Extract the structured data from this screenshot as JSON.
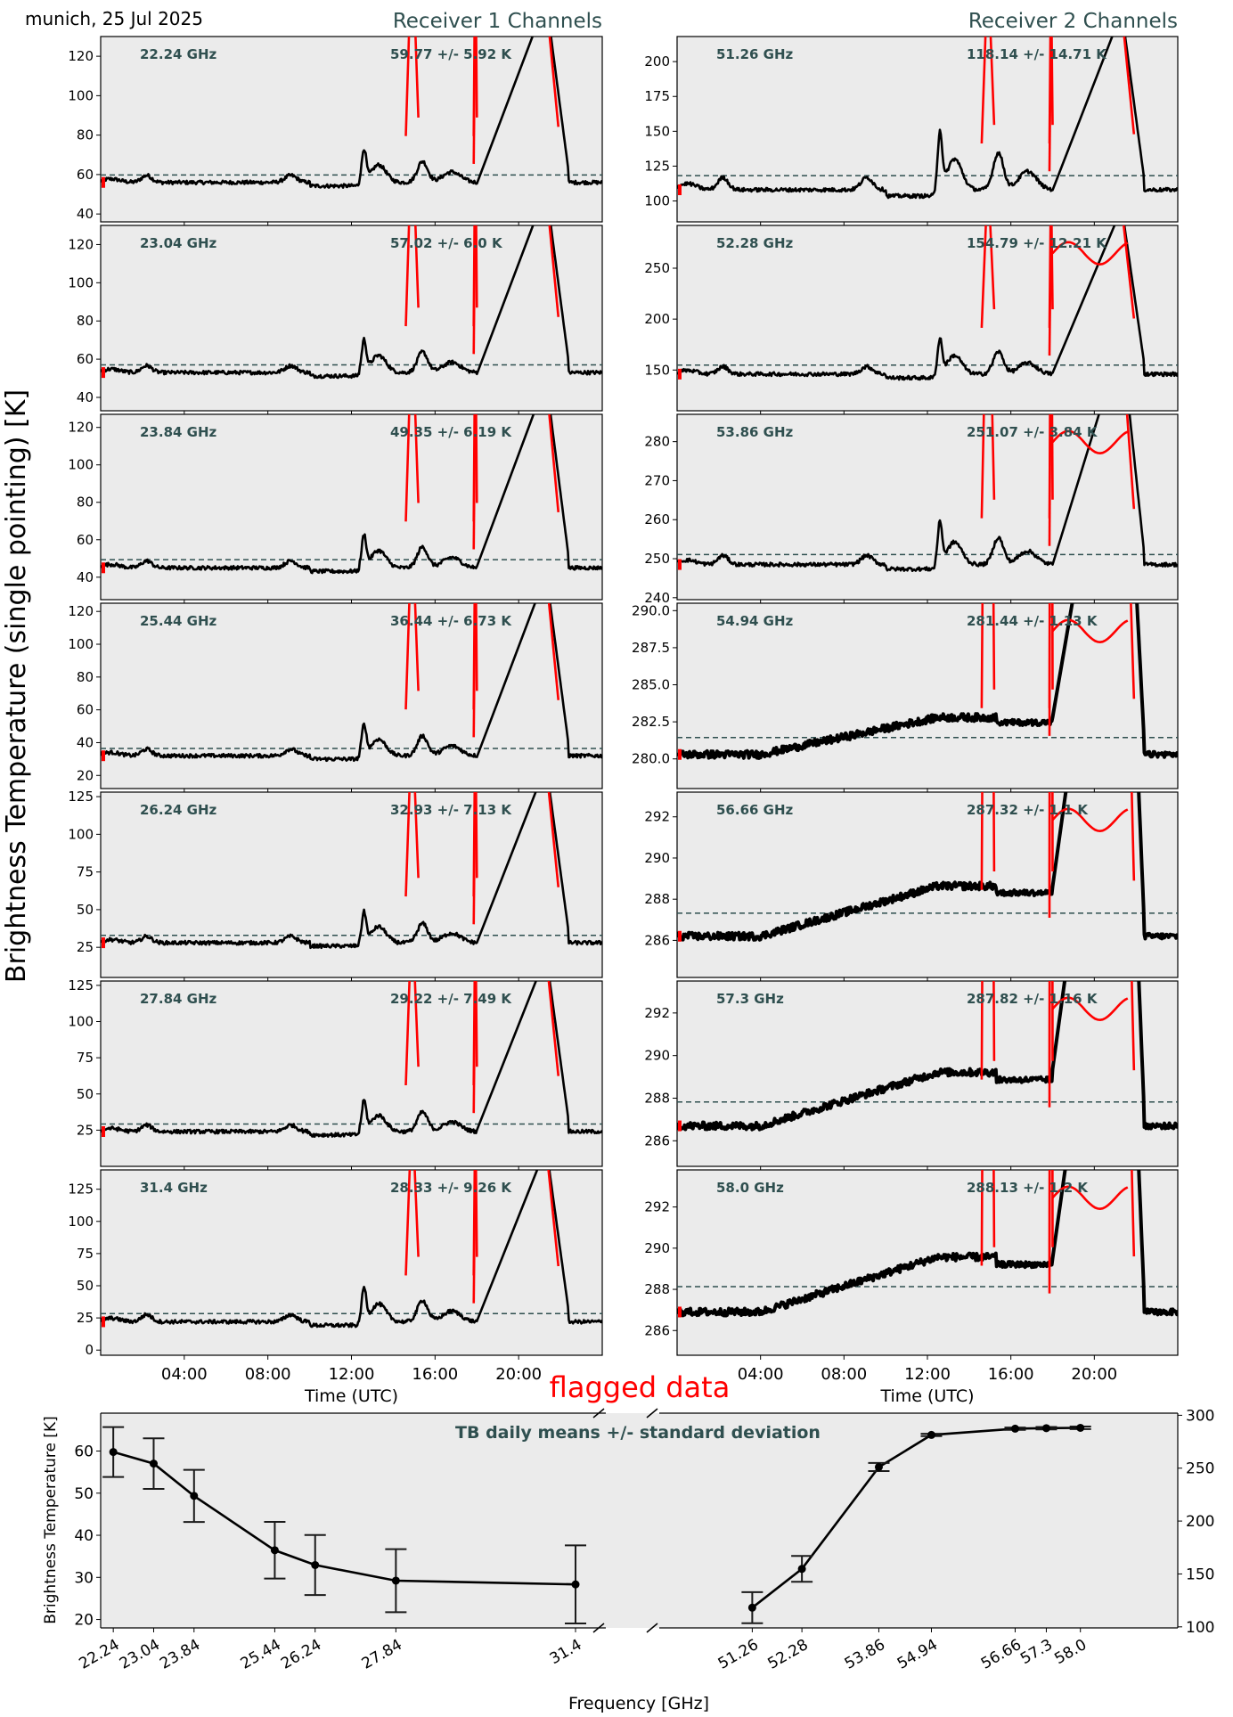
{
  "header": {
    "site_date": "munich, 25 Jul 2025",
    "receiver1_title": "Receiver 1 Channels",
    "receiver2_title": "Receiver 2 Channels",
    "global_ylabel": "Brightness Temperature (single pointing) [K]",
    "flag_legend": "flagged data"
  },
  "colors": {
    "axes_bg": "#ebebeb",
    "line": "#000000",
    "flag": "#ff0000",
    "mean_line": "#2f4f4f",
    "label_text": "#2f4f4f"
  },
  "chart_data": [
    {
      "type": "line",
      "title": "Receiver 1 Channels",
      "xlabel": "Time (UTC)",
      "xticks": [
        "04:00",
        "08:00",
        "12:00",
        "16:00",
        "20:00"
      ],
      "xlim_hours": [
        0,
        24
      ],
      "panels": [
        {
          "freq_label": "22.24 GHz",
          "stat_label": "59.77 +/- 5.92 K",
          "mean": 59.77,
          "std": 5.92,
          "ylim": [
            36,
            130
          ],
          "yticks": [
            40,
            60,
            80,
            100,
            120
          ],
          "base": 56
        },
        {
          "freq_label": "23.04 GHz",
          "stat_label": "57.02 +/- 6.0 K",
          "mean": 57.02,
          "std": 6.0,
          "ylim": [
            33,
            130
          ],
          "yticks": [
            40,
            60,
            80,
            100,
            120
          ],
          "base": 53
        },
        {
          "freq_label": "23.84 GHz",
          "stat_label": "49.35 +/- 6.19 K",
          "mean": 49.35,
          "std": 6.19,
          "ylim": [
            28,
            127
          ],
          "yticks": [
            40,
            60,
            80,
            100,
            120
          ],
          "base": 45
        },
        {
          "freq_label": "25.44 GHz",
          "stat_label": "36.44 +/- 6.73 K",
          "mean": 36.44,
          "std": 6.73,
          "ylim": [
            12,
            125
          ],
          "yticks": [
            20,
            40,
            60,
            80,
            100,
            120
          ],
          "base": 32
        },
        {
          "freq_label": "26.24 GHz",
          "stat_label": "32.93 +/- 7.13 K",
          "mean": 32.93,
          "std": 7.13,
          "ylim": [
            5,
            128
          ],
          "yticks": [
            25,
            50,
            75,
            100,
            125
          ],
          "base": 28
        },
        {
          "freq_label": "27.84 GHz",
          "stat_label": "29.22 +/- 7.49 K",
          "mean": 29.22,
          "std": 7.49,
          "ylim": [
            0,
            128
          ],
          "yticks": [
            25,
            50,
            75,
            100,
            125
          ],
          "base": 24
        },
        {
          "freq_label": "31.4 GHz",
          "stat_label": "28.33 +/- 9.26 K",
          "mean": 28.33,
          "std": 9.26,
          "ylim": [
            -4,
            140
          ],
          "yticks": [
            0,
            25,
            50,
            75,
            100,
            125
          ],
          "base": 22
        }
      ]
    },
    {
      "type": "line",
      "title": "Receiver 2 Channels",
      "xlabel": "Time (UTC)",
      "xticks": [
        "04:00",
        "08:00",
        "12:00",
        "16:00",
        "20:00"
      ],
      "xlim_hours": [
        0,
        24
      ],
      "panels": [
        {
          "freq_label": "51.26 GHz",
          "stat_label": "118.14 +/- 14.71 K",
          "mean": 118.14,
          "std": 14.71,
          "ylim": [
            85,
            218
          ],
          "yticks": [
            100,
            125,
            150,
            175,
            200
          ],
          "base": 108
        },
        {
          "freq_label": "52.28 GHz",
          "stat_label": "154.79 +/- 12.21 K",
          "mean": 154.79,
          "std": 12.21,
          "ylim": [
            110,
            292
          ],
          "yticks": [
            150,
            200,
            250
          ],
          "base": 146
        },
        {
          "freq_label": "53.86 GHz",
          "stat_label": "251.07 +/- 3.84 K",
          "mean": 251.07,
          "std": 3.84,
          "ylim": [
            239.5,
            287
          ],
          "yticks": [
            240,
            250,
            260,
            270,
            280
          ],
          "base": 248.5
        },
        {
          "freq_label": "54.94 GHz",
          "stat_label": "281.44 +/- 1.13 K",
          "mean": 281.44,
          "std": 1.13,
          "ylim": [
            278,
            290.5
          ],
          "yticks": [
            280.0,
            282.5,
            285.0,
            287.5,
            290.0
          ],
          "ytick_decimals": 1,
          "base": 280.3
        },
        {
          "freq_label": "56.66 GHz",
          "stat_label": "287.32 +/- 1.1 K",
          "mean": 287.32,
          "std": 1.1,
          "ylim": [
            284.2,
            293.2
          ],
          "yticks": [
            286,
            288,
            290,
            292
          ],
          "base": 286.2
        },
        {
          "freq_label": "57.3 GHz",
          "stat_label": "287.82 +/- 1.16 K",
          "mean": 287.82,
          "std": 1.16,
          "ylim": [
            284.8,
            293.5
          ],
          "yticks": [
            286,
            288,
            290,
            292
          ],
          "base": 286.7
        },
        {
          "freq_label": "58.0 GHz",
          "stat_label": "288.13 +/- 1.2 K",
          "mean": 288.13,
          "std": 1.2,
          "ylim": [
            284.8,
            293.8
          ],
          "yticks": [
            286,
            288,
            290,
            292
          ],
          "base": 286.9
        }
      ]
    },
    {
      "type": "line",
      "subtype": "errorbar-broken-axis",
      "title": "TB daily means +/- standard deviation",
      "xlabel": "Frequency [GHz]",
      "ylabel_left": "Brightness Temperature [K]",
      "left": {
        "x": [
          22.24,
          23.04,
          23.84,
          25.44,
          26.24,
          27.84,
          31.4
        ],
        "xtick_labels": [
          "22.24",
          "23.04",
          "23.84",
          "25.44",
          "26.24",
          "27.84",
          "31.4"
        ],
        "y": [
          59.77,
          57.02,
          49.35,
          36.44,
          32.93,
          29.22,
          28.33
        ],
        "err": [
          5.92,
          6.0,
          6.19,
          6.73,
          7.13,
          7.49,
          9.26
        ],
        "ylim": [
          18,
          69
        ],
        "yticks": [
          20,
          30,
          40,
          50,
          60
        ],
        "xlim": [
          21.99,
          32.0
        ]
      },
      "right": {
        "x": [
          51.26,
          52.28,
          53.86,
          54.94,
          56.66,
          57.3,
          58.0
        ],
        "xtick_labels": [
          "51.26",
          "52.28",
          "53.86",
          "54.94",
          "56.66",
          "57.3",
          "58.0"
        ],
        "y": [
          118.14,
          154.79,
          251.07,
          281.44,
          287.32,
          287.82,
          288.13
        ],
        "err": [
          14.71,
          12.21,
          3.84,
          1.13,
          1.1,
          1.16,
          1.2
        ],
        "ylim": [
          99,
          302
        ],
        "yticks": [
          100,
          150,
          200,
          250,
          300
        ],
        "xlim": [
          49.35,
          60.0
        ]
      }
    }
  ]
}
